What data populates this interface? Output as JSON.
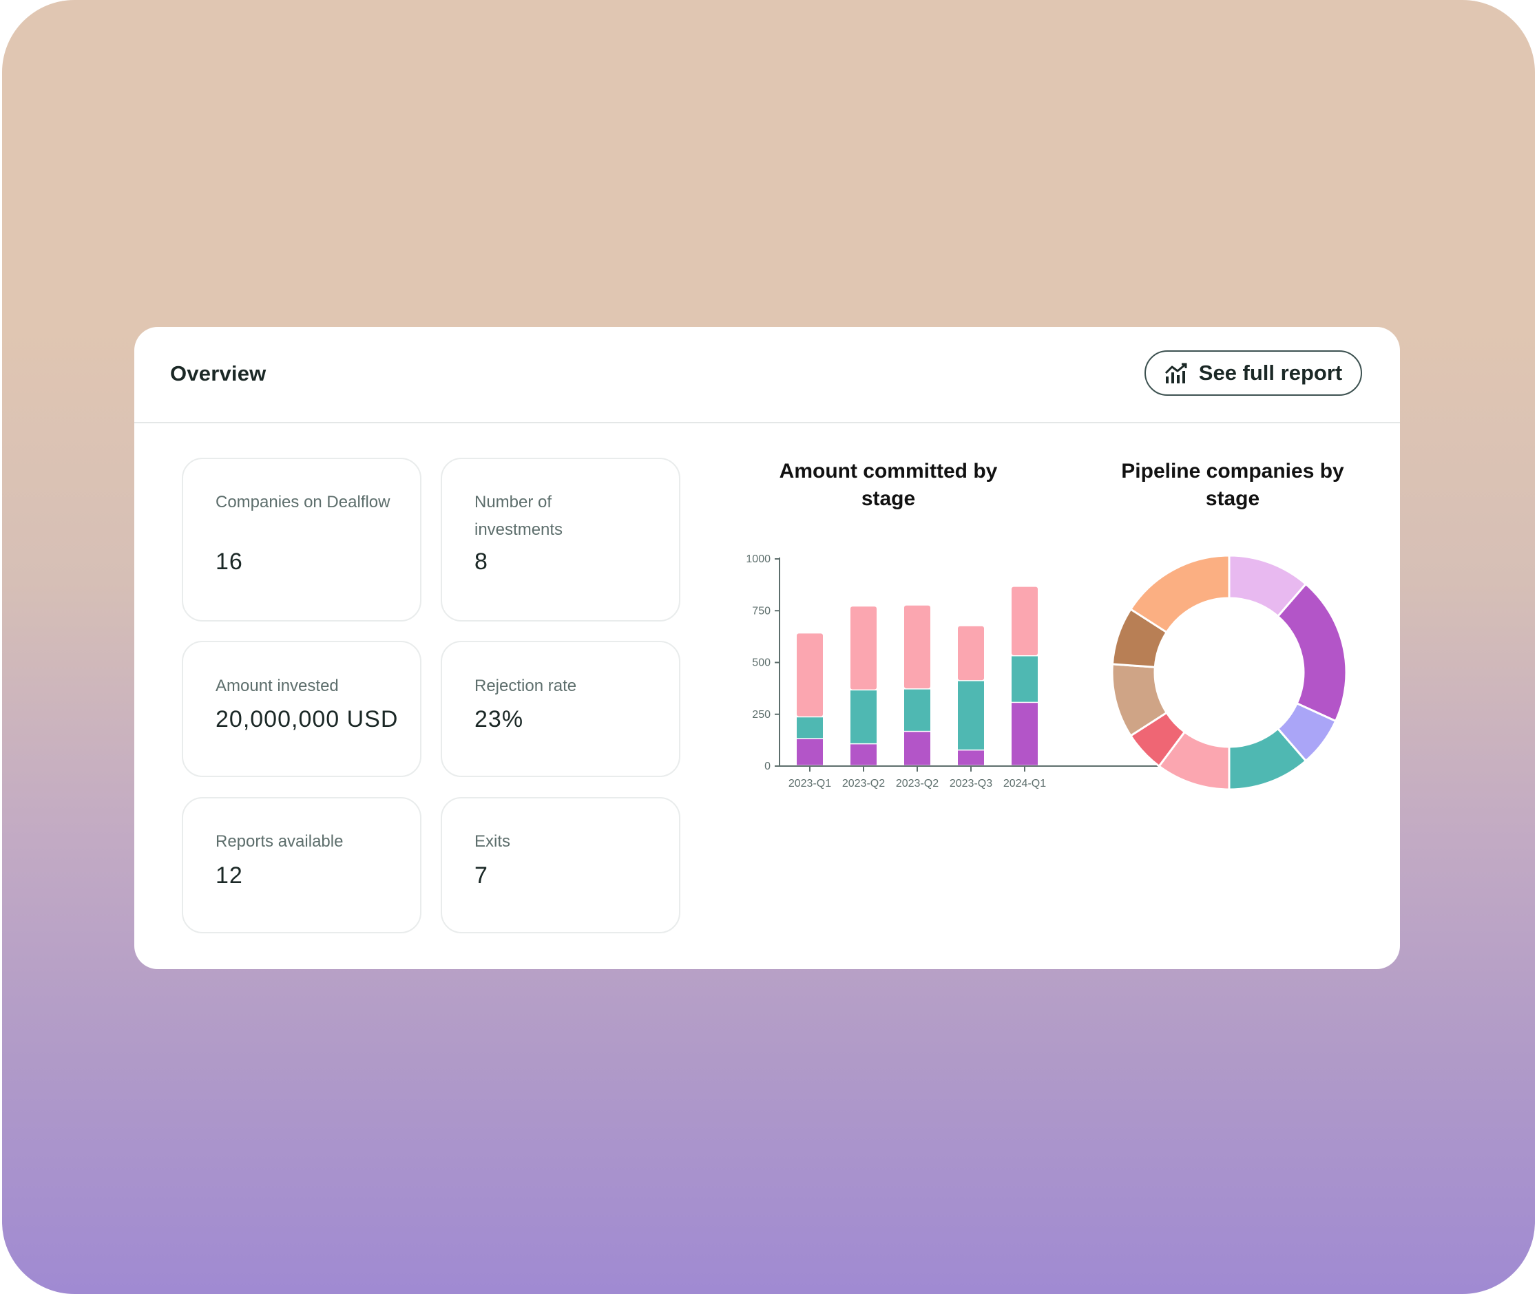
{
  "header": {
    "title": "Overview",
    "report_button": {
      "label": "See full report",
      "icon": "chart-icon"
    }
  },
  "stats": [
    {
      "label": "Companies on Dealflow",
      "value": "16"
    },
    {
      "label": "Number of investments",
      "value": "8"
    },
    {
      "label": "Amount invested",
      "value": "20,000,000 USD"
    },
    {
      "label": "Rejection rate",
      "value": "23%"
    },
    {
      "label": "Reports available",
      "value": "12"
    },
    {
      "label": "Exits",
      "value": "7"
    }
  ],
  "chart_data": [
    {
      "type": "bar",
      "stacked": true,
      "title": "Amount committed by stage",
      "categories": [
        "2023-Q1",
        "2023-Q2",
        "2023-Q2",
        "2023-Q3",
        "2024-Q1"
      ],
      "series": [
        {
          "color": "#b355c8",
          "values": [
            130,
            105,
            165,
            75,
            305
          ]
        },
        {
          "color": "#4fb8b2",
          "values": [
            105,
            260,
            205,
            335,
            225
          ]
        },
        {
          "color": "#fba6b0",
          "values": [
            405,
            405,
            405,
            265,
            335
          ]
        }
      ],
      "yticks": [
        0,
        250,
        500,
        750,
        1000
      ],
      "ylim": [
        0,
        1000
      ],
      "xlabel": "",
      "ylabel": ""
    },
    {
      "type": "pie",
      "donut": true,
      "title": "Pipeline companies by stage",
      "values": [
        10,
        18,
        6,
        10,
        9,
        5,
        9,
        7,
        14
      ],
      "colors": [
        "#e8b9f0",
        "#b355c8",
        "#aaa5f7",
        "#4fb8b2",
        "#fba6b0",
        "#ef6674",
        "#cfa486",
        "#b87f55",
        "#fbaf82"
      ]
    }
  ]
}
